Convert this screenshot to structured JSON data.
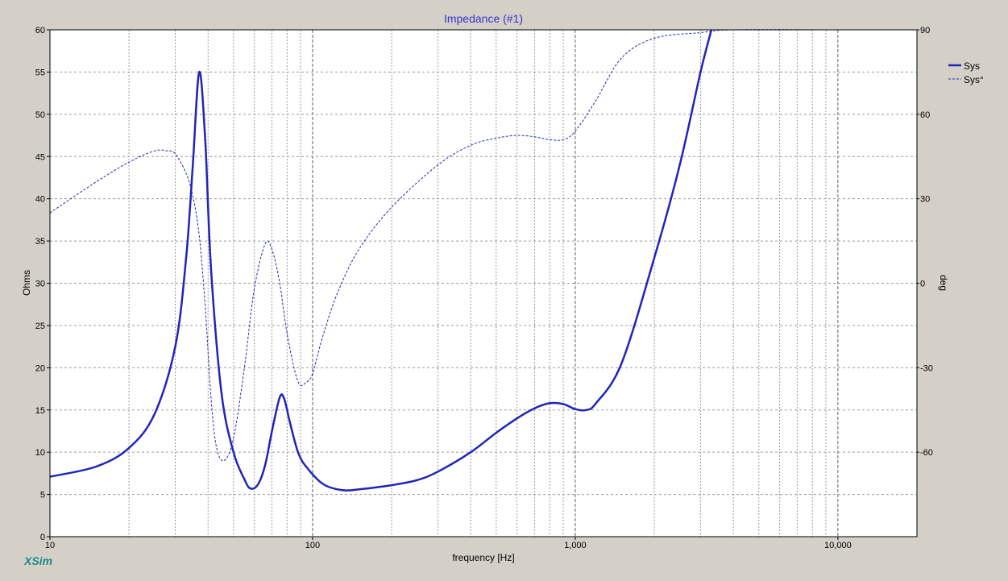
{
  "brand": "XSim",
  "colors": {
    "background": "#d4d0c8",
    "plot_bg": "#ffffff",
    "series": "#1f25b8",
    "title": "#3333cc",
    "grid": "#808080",
    "brand": "#1c8a8a"
  },
  "chart_data": {
    "type": "line",
    "title": "Impedance (#1)",
    "xlabel": "frequency [Hz]",
    "ylabel": "Ohms",
    "y2label": "deg",
    "xscale": "log",
    "xlim": [
      10,
      20000
    ],
    "ylim": [
      0,
      60
    ],
    "y2lim": [
      -90,
      90
    ],
    "xticks": [
      10,
      100,
      1000,
      10000
    ],
    "xtick_labels": [
      "10",
      "100",
      "1,000",
      "10,000"
    ],
    "yticks": [
      0,
      5,
      10,
      15,
      20,
      25,
      30,
      35,
      40,
      45,
      50,
      55,
      60
    ],
    "y2ticks": [
      -60,
      -30,
      0,
      30,
      60,
      90
    ],
    "grid": true,
    "legend_position": "top-right",
    "series": [
      {
        "name": "Sys",
        "axis": "left",
        "style": "solid",
        "points": [
          [
            10,
            7.1
          ],
          [
            15,
            8.3
          ],
          [
            20,
            10.5
          ],
          [
            25,
            14.5
          ],
          [
            30,
            22.5
          ],
          [
            33,
            33
          ],
          [
            35,
            44
          ],
          [
            37,
            55
          ],
          [
            39,
            47
          ],
          [
            41,
            32
          ],
          [
            45,
            17
          ],
          [
            50,
            10
          ],
          [
            55,
            6.8
          ],
          [
            58,
            5.7
          ],
          [
            62,
            6.2
          ],
          [
            66,
            8.5
          ],
          [
            70,
            12.5
          ],
          [
            75,
            16.5
          ],
          [
            78,
            16.3
          ],
          [
            82,
            13.5
          ],
          [
            88,
            10
          ],
          [
            95,
            8.2
          ],
          [
            110,
            6.2
          ],
          [
            130,
            5.5
          ],
          [
            150,
            5.6
          ],
          [
            200,
            6.1
          ],
          [
            250,
            6.7
          ],
          [
            300,
            7.7
          ],
          [
            400,
            10
          ],
          [
            500,
            12.3
          ],
          [
            600,
            14
          ],
          [
            700,
            15.2
          ],
          [
            800,
            15.8
          ],
          [
            900,
            15.7
          ],
          [
            1000,
            15.1
          ],
          [
            1100,
            15
          ],
          [
            1200,
            15.8
          ],
          [
            1500,
            20.5
          ],
          [
            2000,
            33
          ],
          [
            2500,
            44
          ],
          [
            3000,
            55
          ],
          [
            3300,
            60
          ]
        ]
      },
      {
        "name": "Sys°",
        "axis": "right",
        "style": "dashed",
        "points": [
          [
            10,
            25
          ],
          [
            15,
            36
          ],
          [
            20,
            43
          ],
          [
            25,
            47
          ],
          [
            28,
            47
          ],
          [
            30,
            46
          ],
          [
            33,
            39
          ],
          [
            35,
            31
          ],
          [
            37,
            17
          ],
          [
            39,
            -8
          ],
          [
            41,
            -40
          ],
          [
            43,
            -58
          ],
          [
            46,
            -63
          ],
          [
            50,
            -55
          ],
          [
            55,
            -30
          ],
          [
            60,
            -2
          ],
          [
            66,
            14
          ],
          [
            70,
            12
          ],
          [
            75,
            0
          ],
          [
            80,
            -18
          ],
          [
            88,
            -35
          ],
          [
            95,
            -35
          ],
          [
            100,
            -32
          ],
          [
            110,
            -18
          ],
          [
            125,
            -3
          ],
          [
            150,
            12
          ],
          [
            200,
            27
          ],
          [
            300,
            42
          ],
          [
            400,
            49
          ],
          [
            500,
            51.5
          ],
          [
            600,
            52.5
          ],
          [
            700,
            52
          ],
          [
            800,
            51
          ],
          [
            900,
            51
          ],
          [
            1000,
            54
          ],
          [
            1200,
            65
          ],
          [
            1500,
            80
          ],
          [
            2000,
            87
          ],
          [
            3000,
            89
          ],
          [
            4000,
            90
          ],
          [
            9000,
            90
          ]
        ]
      }
    ]
  }
}
